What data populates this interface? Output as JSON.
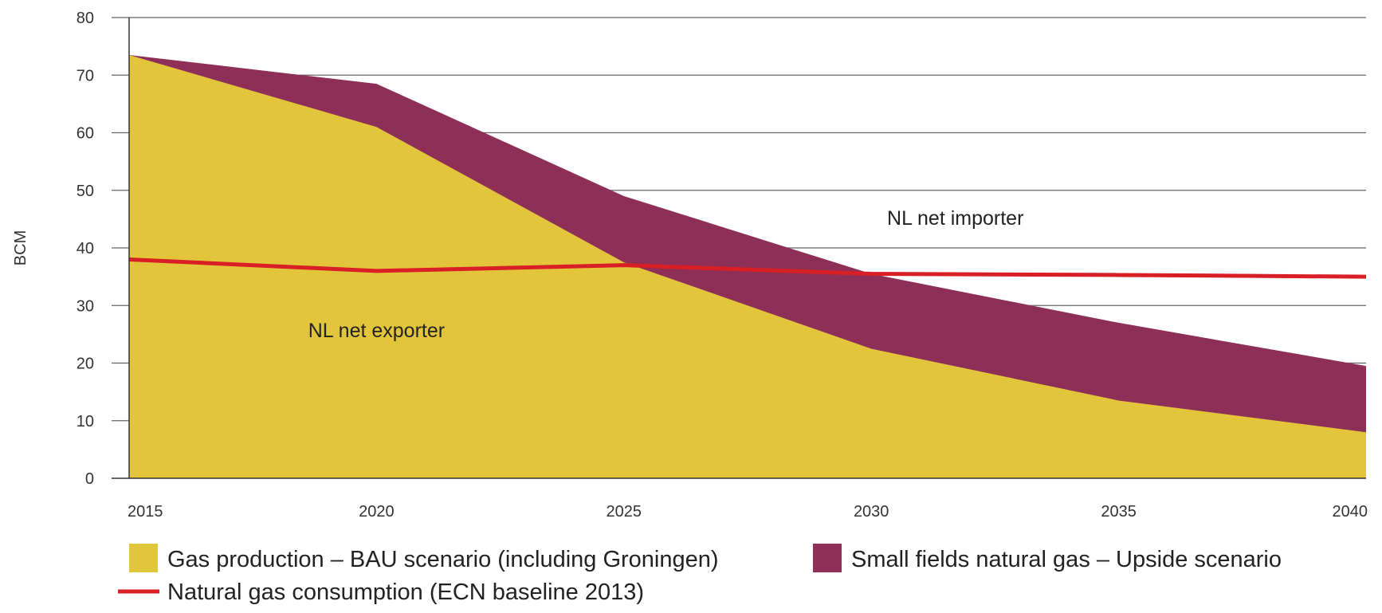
{
  "chart_data": {
    "type": "area",
    "title": "",
    "xlabel": "",
    "ylabel": "BCM",
    "x": [
      2015,
      2020,
      2025,
      2030,
      2035,
      2040
    ],
    "xlim": [
      2015,
      2040
    ],
    "ylim": [
      0,
      80
    ],
    "yticks": [
      0,
      10,
      20,
      30,
      40,
      50,
      60,
      70,
      80
    ],
    "grid": true,
    "legend_position": "bottom",
    "colors": {
      "bau": "#e3c53c",
      "upside": "#8e2f57",
      "consumption": "#d81f26"
    },
    "series": [
      {
        "name": "Gas production – BAU scenario (including Groningen)",
        "kind": "area",
        "x": [
          2015,
          2020,
          2025,
          2030,
          2035,
          2040
        ],
        "values": [
          73.5,
          61,
          37.5,
          22.5,
          13.5,
          8
        ]
      },
      {
        "name": "Small fields natural gas – Upside scenario",
        "kind": "area",
        "x": [
          2015,
          2020,
          2025,
          2030,
          2035,
          2040
        ],
        "values": [
          73.5,
          68.5,
          49,
          35.5,
          27,
          19.5
        ]
      },
      {
        "name": "Natural gas consumption (ECN baseline 2013)",
        "kind": "line",
        "x": [
          2015,
          2020,
          2025,
          2030,
          2035,
          2040
        ],
        "values": [
          38,
          36,
          37,
          35.5,
          35.3,
          35
        ]
      }
    ],
    "annotations": [
      {
        "text": "NL net importer",
        "x": 2031.7,
        "y": 44
      },
      {
        "text": "NL net exporter",
        "x": 2020,
        "y": 24.5
      }
    ]
  }
}
